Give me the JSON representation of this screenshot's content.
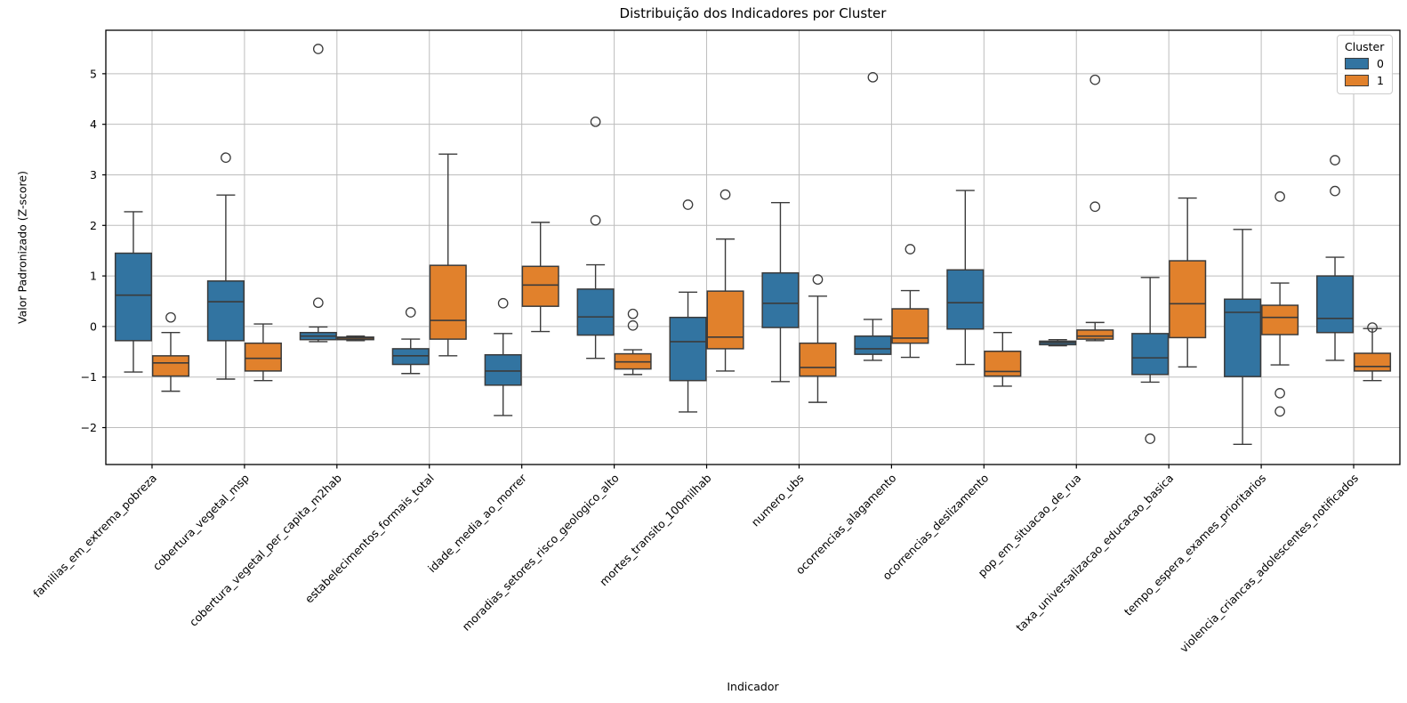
{
  "figure": {
    "background": "#ffffff"
  },
  "chart_data": {
    "type": "box",
    "title": "Distribuição dos Indicadores por Cluster",
    "xlabel": "Indicador",
    "ylabel": "Valor Padronizado (Z-score)",
    "ylim": [
      -2.73,
      5.86
    ],
    "yticks": [
      -2,
      -1,
      0,
      1,
      2,
      3,
      4,
      5
    ],
    "ytick_labels": [
      "−2",
      "−1",
      "0",
      "1",
      "2",
      "3",
      "4",
      "5"
    ],
    "grid": true,
    "xtick_rotation_deg": 45,
    "legend": {
      "title": "Cluster",
      "position": "upper right",
      "entries": [
        {
          "label": "0",
          "color": "#3274a1"
        },
        {
          "label": "1",
          "color": "#e1812c"
        }
      ]
    },
    "colors": {
      "cluster0": "#3274a1",
      "cluster1": "#e1812c",
      "box_edge": "#3b3b3b",
      "grid": "#bdbdbd",
      "spine": "#000000"
    },
    "categories": [
      "familias_em_extrema_pobreza",
      "cobertura_vegetal_msp",
      "cobertura_vegetal_per_capita_m2hab",
      "estabelecimentos_formais_total",
      "idade_media_ao_morrer",
      "moradias_setores_risco_geologico_alto",
      "mortes_transito_100milhab",
      "numero_ubs",
      "ocorrencias_alagamento",
      "ocorrencias_deslizamento",
      "pop_em_situacao_de_rua",
      "taxa_universalizacao_educacao_basica",
      "tempo_espera_exames_prioritarios",
      "violencia_criancas_adolescentes_notificados"
    ],
    "series": [
      {
        "name": "0",
        "color": "#3274a1",
        "boxes": [
          {
            "whislo": -0.9,
            "q1": -0.28,
            "med": 0.62,
            "q3": 1.45,
            "whishi": 2.27,
            "fliers": []
          },
          {
            "whislo": -1.04,
            "q1": -0.28,
            "med": 0.49,
            "q3": 0.9,
            "whishi": 2.6,
            "fliers": [
              3.34
            ]
          },
          {
            "whislo": -0.3,
            "q1": -0.26,
            "med": -0.19,
            "q3": -0.12,
            "whishi": -0.01,
            "fliers": [
              0.47,
              5.49
            ]
          },
          {
            "whislo": -0.93,
            "q1": -0.75,
            "med": -0.58,
            "q3": -0.44,
            "whishi": -0.25,
            "fliers": [
              0.28
            ]
          },
          {
            "whislo": -1.76,
            "q1": -1.16,
            "med": -0.88,
            "q3": -0.56,
            "whishi": -0.14,
            "fliers": [
              0.46
            ]
          },
          {
            "whislo": -0.63,
            "q1": -0.17,
            "med": 0.19,
            "q3": 0.74,
            "whishi": 1.22,
            "fliers": [
              2.1,
              4.05
            ]
          },
          {
            "whislo": -1.69,
            "q1": -1.07,
            "med": -0.3,
            "q3": 0.18,
            "whishi": 0.68,
            "fliers": [
              2.41
            ]
          },
          {
            "whislo": -1.09,
            "q1": -0.02,
            "med": 0.46,
            "q3": 1.06,
            "whishi": 2.45,
            "fliers": []
          },
          {
            "whislo": -0.67,
            "q1": -0.55,
            "med": -0.44,
            "q3": -0.19,
            "whishi": 0.14,
            "fliers": [
              4.93
            ]
          },
          {
            "whislo": -0.75,
            "q1": -0.05,
            "med": 0.47,
            "q3": 1.12,
            "whishi": 2.69,
            "fliers": []
          },
          {
            "whislo": -0.38,
            "q1": -0.36,
            "med": -0.32,
            "q3": -0.29,
            "whishi": -0.26,
            "fliers": []
          },
          {
            "whislo": -1.1,
            "q1": -0.95,
            "med": -0.62,
            "q3": -0.14,
            "whishi": 0.97,
            "fliers": [
              -2.22
            ]
          },
          {
            "whislo": -2.33,
            "q1": -0.99,
            "med": 0.28,
            "q3": 0.54,
            "whishi": 1.92,
            "fliers": []
          },
          {
            "whislo": -0.67,
            "q1": -0.12,
            "med": 0.16,
            "q3": 1.0,
            "whishi": 1.37,
            "fliers": [
              2.68,
              3.29
            ]
          }
        ]
      },
      {
        "name": "1",
        "color": "#e1812c",
        "boxes": [
          {
            "whislo": -1.28,
            "q1": -0.98,
            "med": -0.72,
            "q3": -0.58,
            "whishi": -0.12,
            "fliers": [
              0.18
            ]
          },
          {
            "whislo": -1.07,
            "q1": -0.88,
            "med": -0.63,
            "q3": -0.33,
            "whishi": 0.05,
            "fliers": []
          },
          {
            "whislo": -0.28,
            "q1": -0.26,
            "med": -0.23,
            "q3": -0.21,
            "whishi": -0.19,
            "fliers": []
          },
          {
            "whislo": -0.58,
            "q1": -0.25,
            "med": 0.12,
            "q3": 1.21,
            "whishi": 3.41,
            "fliers": []
          },
          {
            "whislo": -0.1,
            "q1": 0.4,
            "med": 0.82,
            "q3": 1.19,
            "whishi": 2.06,
            "fliers": []
          },
          {
            "whislo": -0.95,
            "q1": -0.84,
            "med": -0.7,
            "q3": -0.54,
            "whishi": -0.46,
            "fliers": [
              0.25,
              0.02
            ]
          },
          {
            "whislo": -0.88,
            "q1": -0.44,
            "med": -0.21,
            "q3": 0.7,
            "whishi": 1.73,
            "fliers": [
              2.61
            ]
          },
          {
            "whislo": -1.5,
            "q1": -0.98,
            "med": -0.81,
            "q3": -0.33,
            "whishi": 0.6,
            "fliers": [
              0.93
            ]
          },
          {
            "whislo": -0.61,
            "q1": -0.33,
            "med": -0.23,
            "q3": 0.35,
            "whishi": 0.71,
            "fliers": [
              1.53
            ]
          },
          {
            "whislo": -1.18,
            "q1": -0.98,
            "med": -0.89,
            "q3": -0.49,
            "whishi": -0.12,
            "fliers": []
          },
          {
            "whislo": -0.28,
            "q1": -0.25,
            "med": -0.19,
            "q3": -0.07,
            "whishi": 0.08,
            "fliers": [
              2.37,
              4.88
            ]
          },
          {
            "whislo": -0.8,
            "q1": -0.22,
            "med": 0.45,
            "q3": 1.3,
            "whishi": 2.54,
            "fliers": []
          },
          {
            "whislo": -0.76,
            "q1": -0.16,
            "med": 0.18,
            "q3": 0.42,
            "whishi": 0.86,
            "fliers": [
              2.57,
              -1.32,
              -1.68
            ]
          },
          {
            "whislo": -1.07,
            "q1": -0.88,
            "med": -0.79,
            "q3": -0.53,
            "whishi": -0.04,
            "fliers": [
              -0.02
            ]
          }
        ]
      }
    ]
  }
}
